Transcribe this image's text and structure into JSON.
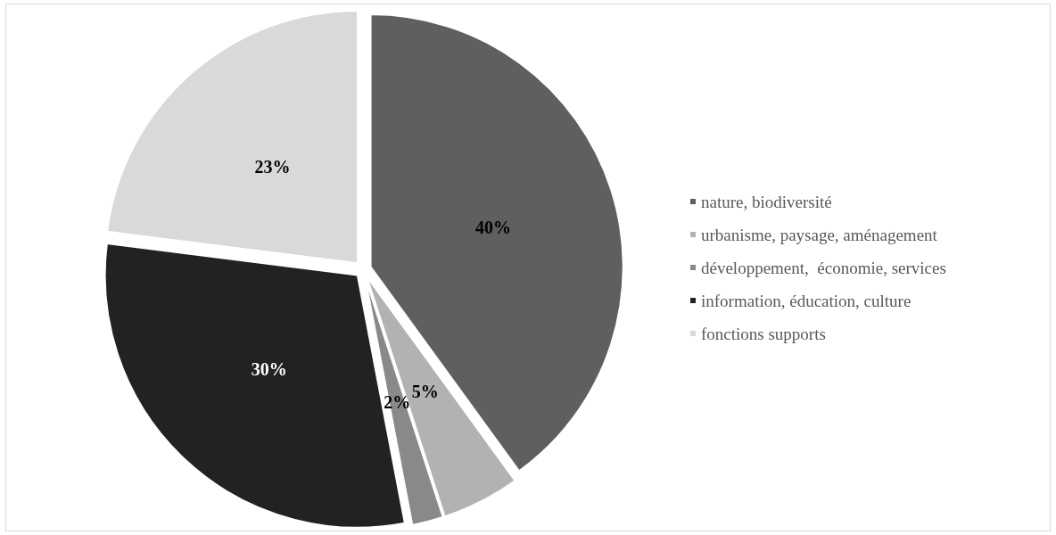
{
  "chart_data": {
    "type": "pie",
    "categories": [
      "nature, biodiversité",
      "urbanisme, paysage, aménagement",
      "développement,  économie, services",
      "information, éducation, culture",
      "fonctions supports"
    ],
    "values": [
      40,
      5,
      2,
      30,
      23
    ],
    "colors": [
      "#5f5f5f",
      "#b2b2b2",
      "#898989",
      "#222222",
      "#d9d9d9"
    ],
    "value_labels": [
      "40%",
      "5%",
      "2%",
      "30%",
      "23%"
    ],
    "legend": "right"
  }
}
